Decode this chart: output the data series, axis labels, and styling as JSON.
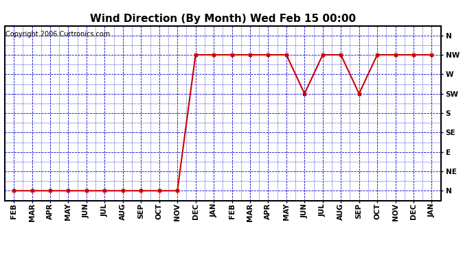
{
  "title": "Wind Direction (By Month) Wed Feb 15 00:00",
  "copyright": "Copyright 2006 Curtronics.com",
  "x_labels": [
    "FEB",
    "MAR",
    "APR",
    "MAY",
    "JUN",
    "JUL",
    "AUG",
    "SEP",
    "OCT",
    "NOV",
    "DEC",
    "JAN",
    "FEB",
    "MAR",
    "APR",
    "MAY",
    "JUN",
    "JUL",
    "AUG",
    "SEP",
    "OCT",
    "NOV",
    "DEC",
    "JAN"
  ],
  "y_labels": [
    "N",
    "NE",
    "E",
    "SE",
    "S",
    "SW",
    "W",
    "NW",
    "N"
  ],
  "y_values": [
    0,
    1,
    2,
    3,
    4,
    5,
    6,
    7,
    8
  ],
  "data_y_values": [
    0,
    0,
    0,
    0,
    0,
    0,
    0,
    0,
    0,
    0,
    7,
    7,
    7,
    7,
    7,
    7,
    5,
    7,
    7,
    5,
    7,
    7,
    7,
    7
  ],
  "line_color": "#cc0000",
  "marker_color": "#cc0000",
  "grid_color": "#0000cc",
  "background_color": "#ffffff",
  "axis_color": "#000000",
  "title_fontsize": 11,
  "copyright_fontsize": 7,
  "tick_fontsize": 7.5
}
